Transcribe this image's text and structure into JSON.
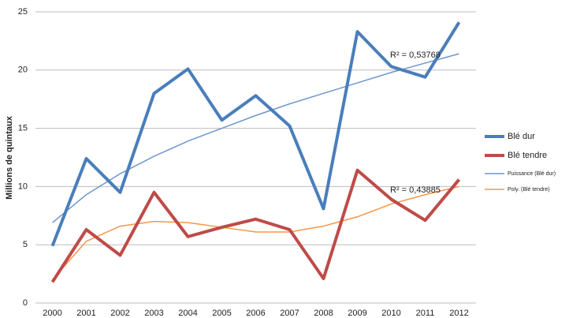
{
  "chart_data": {
    "type": "line",
    "y_label": "Millions de quintaux",
    "categories": [
      "2000",
      "2001",
      "2002",
      "2003",
      "2004",
      "2005",
      "2006",
      "2007",
      "2008",
      "2009",
      "2010",
      "2011",
      "2012"
    ],
    "series": [
      {
        "name": "Blé dur",
        "color": "#4a7ebb",
        "line_width": 4,
        "values": [
          4.9,
          12.4,
          9.5,
          18,
          20.1,
          15.7,
          17.8,
          15.2,
          8.1,
          23.3,
          20.3,
          19.4,
          24.1
        ]
      },
      {
        "name": "Blé tendre",
        "color": "#be4b48",
        "line_width": 4,
        "values": [
          1.8,
          6.3,
          4.1,
          9.5,
          5.7,
          6.5,
          7.2,
          6.3,
          2.1,
          11.4,
          8.9,
          7.1,
          10.6
        ]
      },
      {
        "name": "Puissance (Blé dur)",
        "color": "#6f96cc",
        "line_width": 1.5,
        "values": [
          6.9,
          9.3,
          11.1,
          12.6,
          13.9,
          15.0,
          16.1,
          17.1,
          18.0,
          18.9,
          19.8,
          20.6,
          21.4
        ]
      },
      {
        "name": "Poly. (Blé tendre)",
        "color": "#f79646",
        "line_width": 1.5,
        "values": [
          2.0,
          5.3,
          6.6,
          7.0,
          6.9,
          6.5,
          6.1,
          6.1,
          6.6,
          7.4,
          8.5,
          9.3,
          10.0
        ]
      }
    ],
    "annotations": [
      "R² = 0,53768",
      "R² = 0,43885"
    ],
    "ylim": [
      0,
      25
    ],
    "yticks": [
      0,
      5,
      10,
      15,
      20,
      25
    ],
    "grid": true,
    "legend": "right"
  }
}
